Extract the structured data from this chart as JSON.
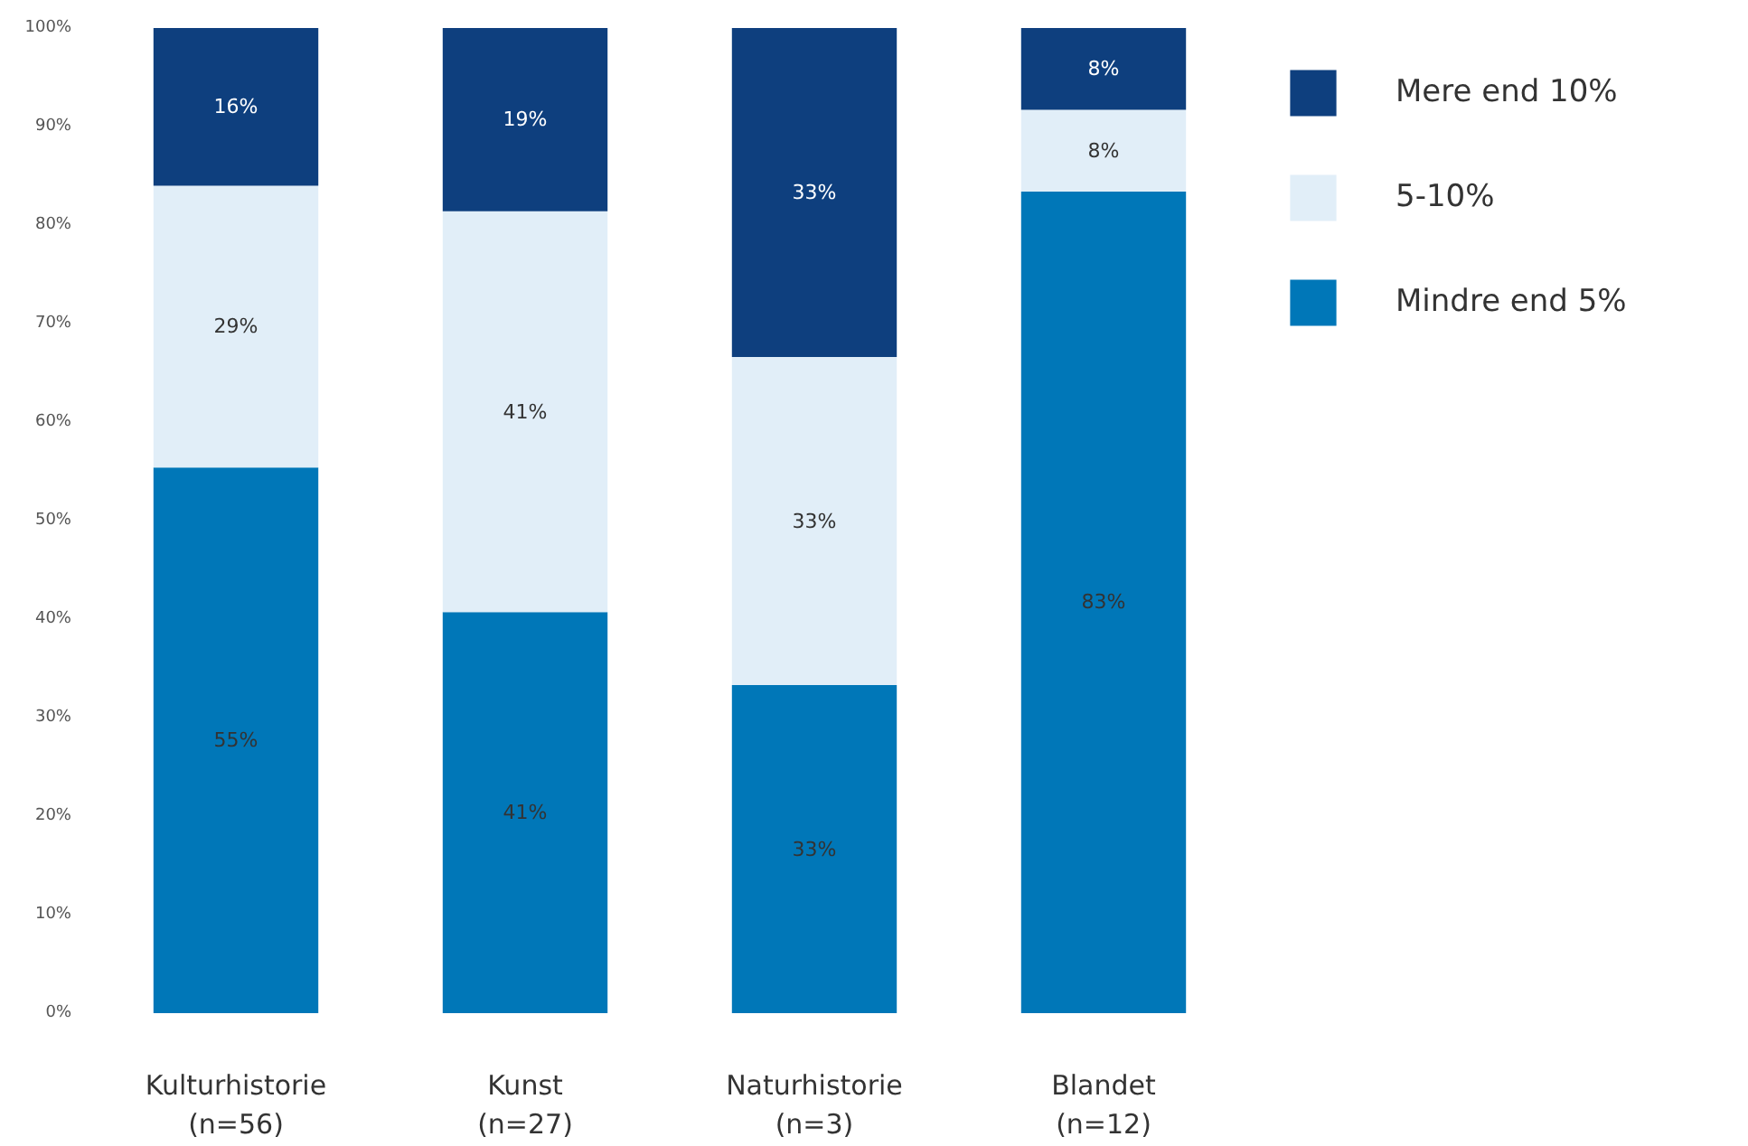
{
  "chart_data": {
    "type": "bar",
    "stacked": true,
    "categories": [
      "Kulturhistorie\n(n=56)",
      "Kunst\n(n=27)",
      "Naturhistorie\n(n=3)",
      "Blandet\n(n=12)"
    ],
    "series": [
      {
        "name": "Mindre end 5%",
        "color": "#0077b8",
        "values": [
          55.4,
          40.7,
          33.3,
          83.4
        ],
        "value_labels": [
          "55%",
          "41%",
          "33%",
          "83%"
        ]
      },
      {
        "name": "5-10%",
        "color": "#e1eef8",
        "values": [
          28.6,
          40.7,
          33.3,
          8.3
        ],
        "value_labels": [
          "29%",
          "41%",
          "33%",
          "8%"
        ]
      },
      {
        "name": "Mere end 10%",
        "color": "#0e3f7e",
        "values": [
          16.0,
          18.6,
          33.4,
          8.3
        ],
        "value_labels": [
          "16%",
          "19%",
          "33%",
          "8%"
        ]
      }
    ],
    "ylim": [
      0,
      100
    ],
    "yticks": [
      {
        "value": 0,
        "label": "0%"
      },
      {
        "value": 10,
        "label": "10%"
      },
      {
        "value": 20,
        "label": "20%"
      },
      {
        "value": 30,
        "label": "30%"
      },
      {
        "value": 40,
        "label": "40%"
      },
      {
        "value": 50,
        "label": "50%"
      },
      {
        "value": 60,
        "label": "60%"
      },
      {
        "value": 70,
        "label": "70%"
      },
      {
        "value": 80,
        "label": "80%"
      },
      {
        "value": 90,
        "label": "90%"
      },
      {
        "value": 100,
        "label": "100%"
      }
    ],
    "grid": false,
    "legend": "top right"
  }
}
